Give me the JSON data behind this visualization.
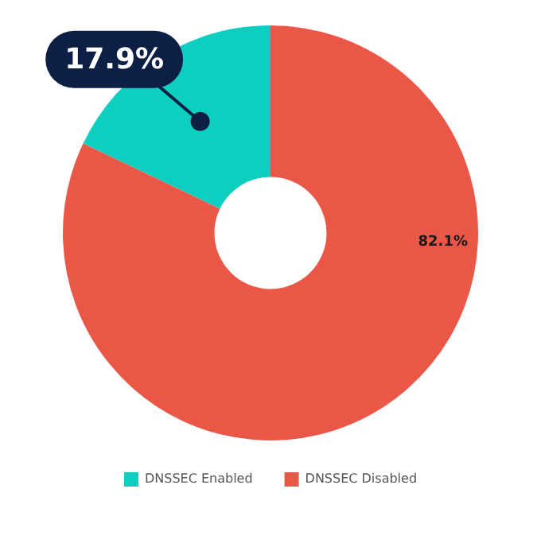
{
  "chart_data": {
    "type": "donut",
    "categories": [
      "DNSSEC Enabled",
      "DNSSEC Disabled"
    ],
    "values": [
      17.9,
      82.1
    ],
    "colors": [
      "#0ccfc0",
      "#eb5747"
    ],
    "value_labels": [
      "17.9%",
      "82.1%"
    ],
    "legend": "bottom"
  }
}
